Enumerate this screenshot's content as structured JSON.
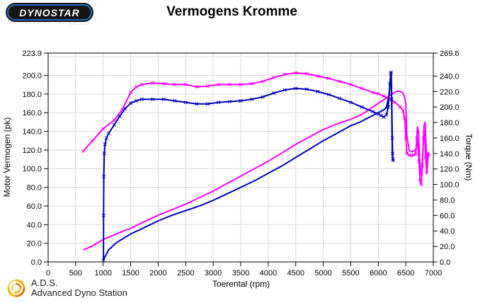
{
  "logo": {
    "text": "DYNOSTAR",
    "subtext": "......."
  },
  "footer": {
    "abbr": "A.D.S.",
    "name": "Advanced Dyno Station"
  },
  "colors": {
    "run_magenta": "#FF00FF",
    "run_blue": "#0000BB",
    "grid": "#D8D8D8",
    "frame": "#000000"
  },
  "chart_data": {
    "type": "line",
    "title": "Vermogens Kromme",
    "xlabel": "Toerental (rpm)",
    "ylabel_left": "Motor Vermogen (pk)",
    "ylabel_right": "Torque (Nm)",
    "xlim": [
      0,
      7000
    ],
    "ylim_left": [
      0,
      223.9
    ],
    "ylim_right": [
      0,
      269.6
    ],
    "grid": true,
    "grid_color": "#D8D8D8",
    "x_ticks": [
      0,
      500,
      1000,
      1500,
      2000,
      2500,
      3000,
      3500,
      4000,
      4500,
      5000,
      5500,
      6000,
      6500,
      7000
    ],
    "y_grid_left": [
      20,
      40,
      60,
      80,
      100,
      120,
      140,
      160,
      180,
      200,
      220
    ],
    "y_ticks_left": [
      {
        "v": 223.9,
        "label": "223.9"
      },
      {
        "v": 200,
        "label": "200.0"
      },
      {
        "v": 180,
        "label": "180.0"
      },
      {
        "v": 160,
        "label": "160.0"
      },
      {
        "v": 140,
        "label": "140.0"
      },
      {
        "v": 120,
        "label": "120.0"
      },
      {
        "v": 100,
        "label": "100.0"
      },
      {
        "v": 80,
        "label": "80.0"
      },
      {
        "v": 60,
        "label": "60.0"
      },
      {
        "v": 40,
        "label": "40.0"
      },
      {
        "v": 20,
        "label": "20.0"
      },
      {
        "v": 0,
        "label": "0.0"
      }
    ],
    "y_ticks_right": [
      {
        "v": 269.6,
        "label": "269.6"
      },
      {
        "v": 240,
        "label": "240.0"
      },
      {
        "v": 220,
        "label": "220.0"
      },
      {
        "v": 200,
        "label": "200.0"
      },
      {
        "v": 180,
        "label": "180.0"
      },
      {
        "v": 160,
        "label": "160.0"
      },
      {
        "v": 140,
        "label": "140.0"
      },
      {
        "v": 120,
        "label": "120.0"
      },
      {
        "v": 100,
        "label": "100.0"
      },
      {
        "v": 80,
        "label": "80.0"
      },
      {
        "v": 60,
        "label": "60.0"
      },
      {
        "v": 40,
        "label": "40.0"
      },
      {
        "v": 20,
        "label": "20.0"
      },
      {
        "v": 0,
        "label": "0.0"
      }
    ],
    "series": [
      {
        "name": "torque-run-magenta",
        "axis": "right",
        "color": "#FF00FF",
        "marker": "x",
        "width": 2,
        "points": [
          [
            640,
            143
          ],
          [
            800,
            156
          ],
          [
            1000,
            172
          ],
          [
            1200,
            183
          ],
          [
            1350,
            197
          ],
          [
            1500,
            219
          ],
          [
            1600,
            226
          ],
          [
            1700,
            229
          ],
          [
            1900,
            231
          ],
          [
            2100,
            230
          ],
          [
            2300,
            229
          ],
          [
            2500,
            229
          ],
          [
            2700,
            226
          ],
          [
            2900,
            227
          ],
          [
            3100,
            229
          ],
          [
            3300,
            229
          ],
          [
            3500,
            229
          ],
          [
            3700,
            230
          ],
          [
            3900,
            233
          ],
          [
            4100,
            238
          ],
          [
            4300,
            242
          ],
          [
            4500,
            244
          ],
          [
            4700,
            243
          ],
          [
            4900,
            240
          ],
          [
            5100,
            237
          ],
          [
            5300,
            233
          ],
          [
            5500,
            229
          ],
          [
            5700,
            224
          ],
          [
            5900,
            219
          ],
          [
            6000,
            217
          ],
          [
            6100,
            214
          ],
          [
            6200,
            210
          ],
          [
            6300,
            206
          ],
          [
            6400,
            200
          ],
          [
            6450,
            195
          ],
          [
            6480,
            185
          ],
          [
            6500,
            160
          ],
          [
            6520,
            140
          ],
          [
            6560,
            138
          ],
          [
            6600,
            137
          ],
          [
            6640,
            138
          ],
          [
            6680,
            139
          ],
          [
            6700,
            160
          ],
          [
            6720,
            152
          ],
          [
            6740,
            130
          ],
          [
            6760,
            105
          ],
          [
            6780,
            100
          ],
          [
            6800,
            125
          ],
          [
            6820,
            160
          ],
          [
            6840,
            168
          ],
          [
            6860,
            135
          ],
          [
            6880,
            115
          ],
          [
            6900,
            140
          ],
          [
            6920,
            138
          ]
        ]
      },
      {
        "name": "power-run-magenta",
        "axis": "left",
        "color": "#FF00FF",
        "marker": "none",
        "width": 2,
        "points": [
          [
            640,
            13
          ],
          [
            800,
            17
          ],
          [
            1000,
            24
          ],
          [
            1200,
            29
          ],
          [
            1400,
            34
          ],
          [
            1500,
            36
          ],
          [
            1700,
            42
          ],
          [
            2000,
            50
          ],
          [
            2250,
            56
          ],
          [
            2500,
            62
          ],
          [
            2750,
            69
          ],
          [
            3000,
            76
          ],
          [
            3250,
            84
          ],
          [
            3500,
            92
          ],
          [
            3750,
            100
          ],
          [
            4000,
            108
          ],
          [
            4250,
            117
          ],
          [
            4500,
            126
          ],
          [
            4750,
            134
          ],
          [
            5000,
            142
          ],
          [
            5250,
            148
          ],
          [
            5500,
            153
          ],
          [
            5670,
            157
          ],
          [
            5800,
            162
          ],
          [
            6000,
            170
          ],
          [
            6100,
            174
          ],
          [
            6200,
            178
          ],
          [
            6300,
            182
          ],
          [
            6350,
            183
          ],
          [
            6400,
            183
          ],
          [
            6450,
            181
          ],
          [
            6480,
            176
          ],
          [
            6500,
            170
          ],
          [
            6520,
            135
          ],
          [
            6560,
            120
          ],
          [
            6600,
            118
          ],
          [
            6650,
            119
          ],
          [
            6690,
            121
          ],
          [
            6710,
            145
          ],
          [
            6730,
            140
          ],
          [
            6750,
            112
          ],
          [
            6770,
            96
          ],
          [
            6790,
            92
          ],
          [
            6810,
            115
          ],
          [
            6830,
            146
          ],
          [
            6850,
            150
          ],
          [
            6870,
            122
          ],
          [
            6890,
            100
          ],
          [
            6910,
            118
          ]
        ]
      },
      {
        "name": "torque-run-blue",
        "axis": "right",
        "color": "#0000BB",
        "marker": "x",
        "width": 2,
        "points": [
          [
            1005,
            2
          ],
          [
            1008,
            60
          ],
          [
            1012,
            110
          ],
          [
            1020,
            140
          ],
          [
            1035,
            152
          ],
          [
            1060,
            160
          ],
          [
            1100,
            166
          ],
          [
            1200,
            177
          ],
          [
            1300,
            188
          ],
          [
            1400,
            198
          ],
          [
            1500,
            205
          ],
          [
            1600,
            208
          ],
          [
            1700,
            210
          ],
          [
            1900,
            210
          ],
          [
            2100,
            210
          ],
          [
            2300,
            208
          ],
          [
            2500,
            206
          ],
          [
            2700,
            204
          ],
          [
            2900,
            204
          ],
          [
            3100,
            206
          ],
          [
            3300,
            207
          ],
          [
            3500,
            208
          ],
          [
            3700,
            210
          ],
          [
            3900,
            213
          ],
          [
            4100,
            218
          ],
          [
            4300,
            222
          ],
          [
            4500,
            224
          ],
          [
            4700,
            223
          ],
          [
            4900,
            220
          ],
          [
            5100,
            216
          ],
          [
            5300,
            211
          ],
          [
            5500,
            206
          ],
          [
            5700,
            200
          ],
          [
            5900,
            194
          ],
          [
            6000,
            191
          ],
          [
            6050,
            189
          ],
          [
            6100,
            187
          ],
          [
            6150,
            190
          ],
          [
            6180,
            200
          ],
          [
            6210,
            230
          ],
          [
            6225,
            243
          ],
          [
            6235,
            245
          ],
          [
            6245,
            210
          ],
          [
            6255,
            160
          ],
          [
            6260,
            140
          ],
          [
            6265,
            133
          ],
          [
            6270,
            131
          ]
        ]
      },
      {
        "name": "power-run-blue",
        "axis": "left",
        "color": "#0000BB",
        "marker": "none",
        "width": 2,
        "points": [
          [
            1010,
            3
          ],
          [
            1100,
            13
          ],
          [
            1250,
            21
          ],
          [
            1500,
            30
          ],
          [
            1750,
            37
          ],
          [
            2000,
            44
          ],
          [
            2250,
            50
          ],
          [
            2500,
            55
          ],
          [
            2750,
            60
          ],
          [
            3000,
            66
          ],
          [
            3250,
            73
          ],
          [
            3500,
            80
          ],
          [
            3750,
            87
          ],
          [
            4000,
            95
          ],
          [
            4250,
            103
          ],
          [
            4500,
            112
          ],
          [
            4750,
            121
          ],
          [
            5000,
            130
          ],
          [
            5250,
            138
          ],
          [
            5500,
            146
          ],
          [
            5670,
            150
          ],
          [
            5800,
            154
          ],
          [
            6000,
            160
          ],
          [
            6100,
            163
          ],
          [
            6150,
            166
          ],
          [
            6200,
            180
          ],
          [
            6225,
            200
          ],
          [
            6235,
            203
          ],
          [
            6245,
            160
          ],
          [
            6255,
            115
          ],
          [
            6265,
            110
          ]
        ]
      }
    ]
  }
}
